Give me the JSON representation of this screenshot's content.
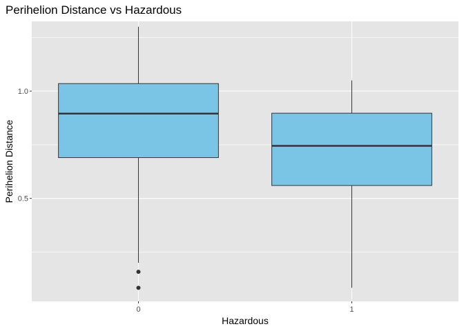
{
  "chart_data": {
    "type": "boxplot",
    "title": "Perihelion Distance vs Hazardous",
    "xlabel": "Hazardous",
    "ylabel": "Perihelion Distance",
    "categories": [
      "0",
      "1"
    ],
    "ylim": [
      0.02,
      1.325
    ],
    "yticks": [
      0.5,
      1.0
    ],
    "ytick_labels": [
      "0.5",
      "1.0"
    ],
    "grid": true,
    "boxes": [
      {
        "category": "0",
        "whisker_low": 0.2,
        "q1": 0.69,
        "median": 0.895,
        "q3": 1.035,
        "whisker_high": 1.3,
        "outliers": [
          0.158,
          0.083
        ]
      },
      {
        "category": "1",
        "whisker_low": 0.083,
        "q1": 0.56,
        "median": 0.745,
        "q3": 0.897,
        "whisker_high": 1.05,
        "outliers": []
      }
    ],
    "colors": {
      "panel": "#E5E5E5",
      "grid": "#FFFFFF",
      "box_fill": "#7AC4E6",
      "box_line": "#333333",
      "outlier": "#333333"
    }
  }
}
